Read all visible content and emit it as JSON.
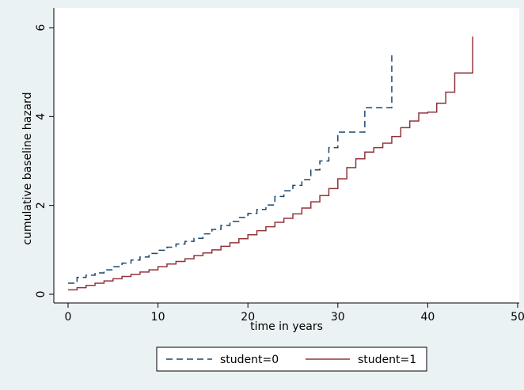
{
  "chart_data": {
    "type": "line",
    "xlabel": "time in years",
    "ylabel": "cumulative baseline hazard",
    "xlim": [
      0,
      50
    ],
    "ylim": [
      0,
      6
    ],
    "xticks": [
      0,
      10,
      20,
      30,
      40,
      50
    ],
    "yticks": [
      0,
      2,
      4,
      6
    ],
    "grid": false,
    "legend_position": "bottom",
    "series": [
      {
        "name": "student=0",
        "color": "#1a476f",
        "dash": "dashed",
        "step": true,
        "x": [
          0,
          1,
          2,
          3,
          4,
          5,
          6,
          7,
          8,
          9,
          10,
          11,
          12,
          13,
          14,
          15,
          16,
          17,
          18,
          19,
          20,
          21,
          22,
          23,
          24,
          25,
          26,
          27,
          28,
          29,
          30,
          33,
          36
        ],
        "y": [
          0.25,
          0.38,
          0.43,
          0.48,
          0.55,
          0.62,
          0.7,
          0.77,
          0.84,
          0.92,
          0.99,
          1.06,
          1.13,
          1.19,
          1.26,
          1.36,
          1.46,
          1.55,
          1.64,
          1.73,
          1.82,
          1.91,
          2.01,
          2.2,
          2.33,
          2.45,
          2.58,
          2.8,
          3.0,
          3.3,
          3.65,
          4.2,
          5.4
        ]
      },
      {
        "name": "student=1",
        "color": "#90353b",
        "dash": "solid",
        "step": true,
        "x": [
          0,
          1,
          2,
          3,
          4,
          5,
          6,
          7,
          8,
          9,
          10,
          11,
          12,
          13,
          14,
          15,
          16,
          17,
          18,
          19,
          20,
          21,
          22,
          23,
          24,
          25,
          26,
          27,
          28,
          29,
          30,
          31,
          32,
          33,
          34,
          35,
          36,
          37,
          38,
          39,
          40,
          41,
          42,
          43,
          44,
          45
        ],
        "y": [
          0.1,
          0.15,
          0.2,
          0.25,
          0.3,
          0.35,
          0.4,
          0.45,
          0.5,
          0.55,
          0.62,
          0.68,
          0.74,
          0.8,
          0.87,
          0.93,
          1.0,
          1.08,
          1.16,
          1.25,
          1.34,
          1.43,
          1.52,
          1.62,
          1.71,
          1.81,
          1.94,
          2.08,
          2.22,
          2.38,
          2.6,
          2.85,
          3.05,
          3.2,
          3.3,
          3.4,
          3.55,
          3.75,
          3.9,
          4.08,
          4.1,
          4.3,
          4.55,
          4.98,
          4.98,
          5.8
        ]
      }
    ]
  }
}
